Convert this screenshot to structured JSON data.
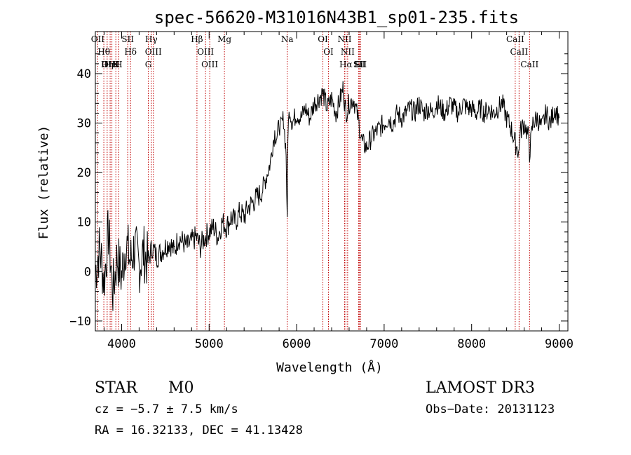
{
  "chart_data": {
    "type": "line",
    "title": "spec-56620-M31016N43B1_sp01-235.fits",
    "xlabel": "Wavelength (Å)",
    "ylabel": "Flux (relative)",
    "xlim": [
      3700,
      9100
    ],
    "ylim": [
      -12,
      48.5
    ],
    "x_ticks": [
      4000,
      5000,
      6000,
      7000,
      8000,
      9000
    ],
    "y_ticks": [
      -10,
      0,
      10,
      20,
      30,
      40
    ],
    "series": [
      {
        "name": "flux",
        "x": [
          3700,
          3750,
          3800,
          3850,
          3900,
          3950,
          4000,
          4050,
          4100,
          4150,
          4200,
          4250,
          4300,
          4350,
          4400,
          4450,
          4500,
          4550,
          4600,
          4650,
          4700,
          4750,
          4800,
          4850,
          4900,
          4950,
          5000,
          5050,
          5100,
          5150,
          5200,
          5250,
          5300,
          5350,
          5400,
          5450,
          5500,
          5550,
          5600,
          5650,
          5700,
          5720,
          5750,
          5780,
          5800,
          5820,
          5850,
          5880,
          5893,
          5900,
          5920,
          5950,
          6000,
          6050,
          6100,
          6150,
          6200,
          6250,
          6300,
          6350,
          6400,
          6450,
          6500,
          6530,
          6563,
          6600,
          6650,
          6700,
          6750,
          6800,
          6850,
          6900,
          6950,
          7000,
          7050,
          7100,
          7150,
          7200,
          7250,
          7300,
          7350,
          7400,
          7450,
          7500,
          7550,
          7600,
          7650,
          7700,
          7750,
          7800,
          7850,
          7900,
          7950,
          8000,
          8050,
          8100,
          8150,
          8200,
          8250,
          8300,
          8350,
          8400,
          8450,
          8498,
          8542,
          8550,
          8600,
          8650,
          8662,
          8700,
          8750,
          8800,
          8850,
          8900,
          8950,
          9000
        ],
        "y": [
          0,
          5,
          -2,
          8,
          -4,
          3,
          -1,
          6,
          2,
          5,
          1,
          4,
          2,
          5,
          3,
          4,
          5,
          6,
          4,
          7,
          6,
          5,
          6,
          7,
          5,
          7,
          8,
          9,
          7,
          10,
          9,
          11,
          10,
          12,
          11,
          13,
          14,
          15,
          16,
          19,
          22,
          25,
          28,
          27,
          30,
          29,
          31,
          24,
          9,
          28,
          33,
          30,
          32,
          31,
          33,
          31,
          34,
          35,
          36,
          33,
          35,
          32,
          35,
          37,
          32,
          34,
          35,
          31,
          26,
          25,
          27,
          28,
          29,
          30,
          31,
          30,
          32,
          31,
          32,
          33,
          32,
          34,
          32,
          33,
          32,
          34,
          33,
          32,
          34,
          33,
          32,
          34,
          33,
          33,
          32,
          33,
          32,
          33,
          32,
          33,
          34,
          31,
          29,
          26,
          24,
          28,
          30,
          27,
          24,
          30,
          31,
          29,
          32,
          30,
          33,
          31
        ]
      }
    ],
    "lines": [
      {
        "name": "Hθ",
        "x": 3797
      },
      {
        "name": "OII",
        "x": 3727
      },
      {
        "name": "OIII",
        "x": 3869
      },
      {
        "name": "HeI",
        "x": 3889
      },
      {
        "name": "Hη",
        "x": 3835
      },
      {
        "name": "K",
        "x": 3934
      },
      {
        "name": "H",
        "x": 3968
      },
      {
        "name": "SII",
        "x": 4070
      },
      {
        "name": "Hδ",
        "x": 4102
      },
      {
        "name": "OIII",
        "x": 4363
      },
      {
        "name": "Hγ",
        "x": 4340
      },
      {
        "name": "G",
        "x": 4305
      },
      {
        "name": "Hβ",
        "x": 4861
      },
      {
        "name": "OIII",
        "x": 4959
      },
      {
        "name": "OIII",
        "x": 5007
      },
      {
        "name": "Mg",
        "x": 5175
      },
      {
        "name": "Na",
        "x": 5893
      },
      {
        "name": "OI",
        "x": 6300
      },
      {
        "name": "OI",
        "x": 6364
      },
      {
        "name": "NII",
        "x": 6548
      },
      {
        "name": "Hα",
        "x": 6563
      },
      {
        "name": "NII",
        "x": 6583
      },
      {
        "name": "Li",
        "x": 6708
      },
      {
        "name": "SII",
        "x": 6717
      },
      {
        "name": "SII",
        "x": 6731
      },
      {
        "name": "CaII",
        "x": 8498
      },
      {
        "name": "CaII",
        "x": 8542
      },
      {
        "name": "CaII",
        "x": 8662
      }
    ]
  },
  "info": {
    "class": "STAR",
    "subclass": "M0",
    "survey": "LAMOST DR3",
    "cz": "cz = −5.7 ± 7.5 km/s",
    "obs_date": "Obs−Date: 20131123",
    "coords": "RA =  16.32133, DEC =  41.13428"
  },
  "colors": {
    "line": "#000000",
    "marker": "#c00000"
  }
}
